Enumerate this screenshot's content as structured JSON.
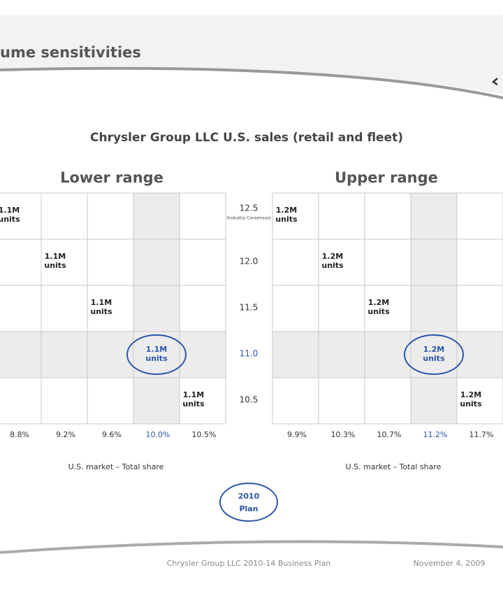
{
  "header": {
    "title": "ume sensitivities"
  },
  "title": "Chrysler Group LLC U.S. sales (retail and fleet)",
  "y_labels": [
    "12.5",
    "12.0",
    "11.5",
    "11.0",
    "10.5"
  ],
  "y_note": "(Industry Consensus)",
  "lower_range": {
    "title": "Lower range",
    "cells": [
      {
        "value": "1.1M",
        "unit": "units"
      },
      {
        "value": "1.1M",
        "unit": "units"
      },
      {
        "value": "1.1M",
        "unit": "units"
      },
      {
        "value": "1.1M",
        "unit": "units"
      },
      {
        "value": "1.1M",
        "unit": "units"
      }
    ],
    "x_labels": [
      "8.8%",
      "9.2%",
      "9.6%",
      "10.0%",
      "10.5%"
    ],
    "x_axis_label": "U.S. market – Total share"
  },
  "upper_range": {
    "title": "Upper range",
    "cells": [
      {
        "value": "1.2M",
        "unit": "units"
      },
      {
        "value": "1.2M",
        "unit": "units"
      },
      {
        "value": "1.2M",
        "unit": "units"
      },
      {
        "value": "1.2M",
        "unit": "units"
      },
      {
        "value": "1.2M",
        "unit": "units"
      }
    ],
    "x_labels": [
      "9.9%",
      "10.3%",
      "10.7%",
      "11.2%",
      "11.7%"
    ],
    "x_axis_label": "U.S. market – Total share"
  },
  "plan": {
    "line1": "2010",
    "line2": "Plan"
  },
  "footer": {
    "left": "Chrysler Group LLC 2010-14 Business Plan",
    "right": "November 4, 2009"
  }
}
